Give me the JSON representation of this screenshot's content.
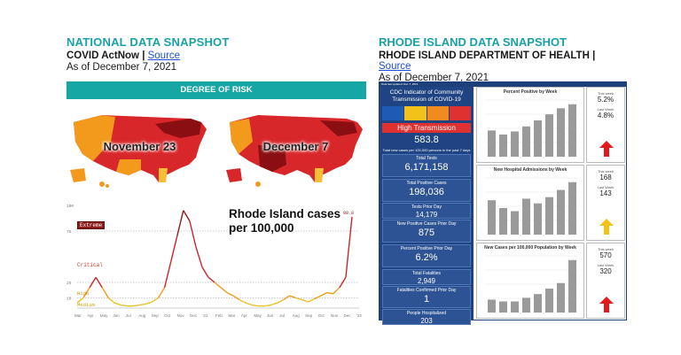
{
  "national": {
    "title": "NATIONAL DATA SNAPSHOT",
    "org": "COVID ActNow",
    "source_link": "Source",
    "as_of": "As of December 7, 2021",
    "risk_header": "DEGREE OF RISK",
    "maps": [
      {
        "label": "November 23"
      },
      {
        "label": "December 7"
      }
    ],
    "chart": {
      "annotation_line1": "Rhode Island cases",
      "annotation_line2": "per 100,000",
      "extreme_label": "Extreme",
      "critical_label": "Critical",
      "high_label": "High",
      "medium_label": "Medium",
      "last_value_label": "88.8",
      "y_top_label": "100",
      "y_75": "75",
      "y_25": "25",
      "y_10": "10",
      "months": [
        "Mar",
        "Apr",
        "May",
        "Jun",
        "Jul",
        "Aug",
        "Sep",
        "Oct",
        "Nov",
        "Dec",
        "'21",
        "Feb",
        "Mar",
        "Apr",
        "May",
        "Jun",
        "Jul",
        "Aug",
        "Sep",
        "Oct",
        "Nov",
        "Dec",
        "'22"
      ]
    }
  },
  "ri": {
    "title": "RHODE ISLAND DATA SNAPSHOT",
    "org": "RHODE ISLAND DEPARTMENT OF HEALTH",
    "source_link": "Source",
    "as_of": "As of December 7, 2021",
    "dash_top": "Data last updated: Dec 7, 2021",
    "cdc_title": "CDC Indicator of Community Transmission of COVID-19",
    "transmission": "High Transmission",
    "cases_per_100k": "583.8",
    "cases_note": "Total new cases per 100,000 persons in the past 7 days",
    "stats": [
      {
        "label": "Total Tests",
        "value": "6,171,158"
      },
      {
        "label": "Total Positive Cases",
        "value": "198,036"
      },
      {
        "label": "Tests Prior Day",
        "value": "14,179"
      },
      {
        "label": "New Positive Cases Prior Day",
        "value": "875"
      },
      {
        "label": "Percent Positive Prior Day",
        "value": "6.2%"
      },
      {
        "label": "Total Fatalities",
        "value": "2,949"
      },
      {
        "label": "Fatalities Confirmed Prior Day",
        "value": "1"
      },
      {
        "label": "People Hospitalized",
        "value": "203"
      }
    ],
    "charts": [
      {
        "title": "Percent Positive by Week",
        "this_week_label": "This week",
        "this_week": "5.2%",
        "last_week_label": "Last Week",
        "last_week": "4.8%",
        "arrow": "up-red"
      },
      {
        "title": "New Hospital Admissions by Week",
        "this_week_label": "This week",
        "this_week": "168",
        "last_week_label": "Last Week",
        "last_week": "143",
        "arrow": "up-yellow"
      },
      {
        "title": "New Cases per 100,000 Population by Week",
        "this_week_label": "This week",
        "this_week": "570",
        "last_week_label": "Last Week",
        "last_week": "320",
        "arrow": "up-red"
      }
    ]
  },
  "colors": {
    "teal": "#18a2a8",
    "navy": "#1f4383",
    "red": "#e03131",
    "bar_gray": "#9a9a9a"
  },
  "chart_data": [
    {
      "type": "bar",
      "title": "Percent Positive by Week",
      "values": [
        2.6,
        2.2,
        2.5,
        3.0,
        3.6,
        4.2,
        4.8,
        5.2
      ]
    },
    {
      "type": "bar",
      "title": "New Hospital Admissions by Week",
      "values": [
        110,
        85,
        75,
        115,
        100,
        120,
        143,
        168
      ]
    },
    {
      "type": "bar",
      "title": "New Cases per 100,000 Population by Week",
      "values": [
        140,
        120,
        120,
        160,
        200,
        260,
        320,
        570
      ]
    },
    {
      "type": "line",
      "title": "Rhode Island cases per 100,000",
      "series": [
        {
          "values": [
            5,
            10,
            20,
            30,
            20,
            10,
            5,
            3,
            2,
            2,
            3,
            4,
            6,
            10,
            20,
            45,
            70,
            95,
            85,
            60,
            40,
            30,
            25,
            20,
            15,
            12,
            8,
            5,
            3,
            2,
            2,
            3,
            5,
            8,
            12,
            10,
            8,
            6,
            9,
            12,
            15,
            14,
            20,
            30,
            88.8
          ]
        }
      ]
    }
  ]
}
